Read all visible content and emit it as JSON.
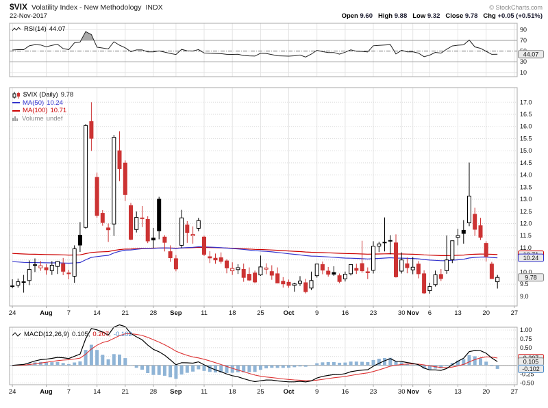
{
  "header": {
    "symbol": "$VIX",
    "title": "Volatility Index - New Methodology",
    "exchange": "INDX",
    "credit": "© StockCharts.com",
    "date": "22-Nov-2017",
    "quote": {
      "open_label": "Open",
      "open": "9.60",
      "high_label": "High",
      "high": "9.88",
      "low_label": "Low",
      "low": "9.32",
      "close_label": "Close",
      "close": "9.78",
      "chg_label": "Chg",
      "chg": "+0.05 (+0.51%)"
    }
  },
  "legends": {
    "rsi": {
      "label": "RSI(14)",
      "value": "44.07"
    },
    "main": {
      "symbol": "$VIX (Daily)",
      "value": "9.78",
      "ma50_label": "MA(50)",
      "ma50_value": "10.24",
      "ma100_label": "MA(100)",
      "ma100_value": "10.71",
      "volume_label": "Volume",
      "volume_value": "undef"
    },
    "macd": {
      "label": "MACD(12,26,9)",
      "macd_value": "0.105,",
      "signal_value": "0.207,",
      "hist_value": "-0.102"
    }
  },
  "chart_data": {
    "type": "candlestick",
    "title": "$VIX (Daily)",
    "x_slots": 90,
    "x_ticks": [
      {
        "i": 0,
        "label": "24"
      },
      {
        "i": 6,
        "label": "Aug",
        "m": true
      },
      {
        "i": 10,
        "label": "7"
      },
      {
        "i": 15,
        "label": "14"
      },
      {
        "i": 20,
        "label": "21"
      },
      {
        "i": 25,
        "label": "28"
      },
      {
        "i": 29,
        "label": "Sep",
        "m": true
      },
      {
        "i": 34,
        "label": "11"
      },
      {
        "i": 39,
        "label": "18"
      },
      {
        "i": 44,
        "label": "25"
      },
      {
        "i": 49,
        "label": "Oct",
        "m": true
      },
      {
        "i": 54,
        "label": "9"
      },
      {
        "i": 59,
        "label": "16"
      },
      {
        "i": 64,
        "label": "23"
      },
      {
        "i": 69,
        "label": "30"
      },
      {
        "i": 71,
        "label": "Nov",
        "m": true
      },
      {
        "i": 74,
        "label": "6"
      },
      {
        "i": 79,
        "label": "13"
      },
      {
        "i": 84,
        "label": "20"
      },
      {
        "i": 89,
        "label": "27"
      }
    ],
    "panels": {
      "rsi": {
        "type": "line",
        "label": "RSI(14)",
        "period": 14,
        "last": 44.07,
        "ylim": [
          2,
          102
        ],
        "ticks": [
          90,
          70,
          50,
          30,
          10
        ],
        "overbought": 70,
        "oversold": 30,
        "mid": 50
      },
      "price": {
        "type": "candlestick",
        "ylim": [
          8.6,
          17.6
        ],
        "tick_min": 9.0,
        "tick_max": 17.0,
        "tick_step": 0.5,
        "last_close": 9.78,
        "ma50": {
          "label": "MA(50)",
          "last": 10.24,
          "start": 10.45
        },
        "ma100": {
          "label": "MA(100)",
          "last": 10.71,
          "start": 10.78
        },
        "volume": "undef"
      },
      "macd": {
        "type": "macd",
        "label": "MACD(12,26,9)",
        "params": [
          12,
          26,
          9
        ],
        "last_macd": 0.105,
        "last_signal": 0.207,
        "last_hist": -0.102,
        "ylim": [
          -0.55,
          1.08
        ],
        "ticks": [
          1.0,
          0.75,
          0.5,
          0.25,
          0.0,
          -0.25,
          -0.5
        ]
      }
    },
    "ohlc": [
      [
        9.42,
        9.7,
        9.33,
        9.43
      ],
      [
        9.46,
        9.73,
        9.36,
        9.6
      ],
      [
        9.6,
        9.88,
        9.15,
        9.6
      ],
      [
        9.65,
        10.48,
        9.46,
        10.11
      ],
      [
        10.3,
        10.56,
        10.0,
        10.29
      ],
      [
        10.17,
        10.46,
        10.05,
        10.26
      ],
      [
        10.18,
        10.33,
        9.89,
        10.09
      ],
      [
        10.06,
        10.45,
        9.88,
        10.28
      ],
      [
        10.23,
        10.46,
        9.92,
        10.44
      ],
      [
        10.34,
        10.58,
        9.87,
        10.03
      ],
      [
        9.96,
        10.09,
        9.7,
        9.93
      ],
      [
        9.83,
        11.1,
        9.56,
        10.96
      ],
      [
        11.52,
        12.06,
        10.83,
        11.11
      ],
      [
        11.84,
        16.1,
        11.78,
        16.04
      ],
      [
        16.2,
        17.0,
        14.99,
        15.51
      ],
      [
        13.9,
        14.1,
        12.24,
        12.33
      ],
      [
        12.42,
        12.55,
        11.91,
        12.04
      ],
      [
        11.82,
        12.0,
        11.24,
        11.74
      ],
      [
        11.98,
        15.65,
        11.49,
        15.55
      ],
      [
        15.0,
        15.8,
        13.75,
        14.26
      ],
      [
        14.49,
        14.6,
        12.93,
        13.19
      ],
      [
        12.74,
        12.85,
        11.31,
        11.35
      ],
      [
        11.75,
        12.5,
        11.63,
        12.25
      ],
      [
        12.2,
        12.72,
        11.85,
        12.23
      ],
      [
        12.17,
        12.3,
        11.19,
        11.28
      ],
      [
        11.4,
        11.82,
        10.99,
        11.32
      ],
      [
        13.0,
        13.1,
        11.35,
        11.7
      ],
      [
        11.44,
        11.52,
        10.85,
        11.22
      ],
      [
        10.84,
        11.1,
        10.42,
        10.59
      ],
      [
        10.55,
        10.7,
        10.03,
        10.13
      ],
      [
        11.1,
        12.56,
        10.99,
        12.23
      ],
      [
        11.94,
        12.1,
        11.2,
        11.63
      ],
      [
        11.49,
        11.88,
        11.17,
        11.55
      ],
      [
        11.8,
        12.23,
        11.68,
        12.12
      ],
      [
        11.44,
        11.5,
        10.66,
        10.73
      ],
      [
        10.63,
        10.86,
        10.37,
        10.58
      ],
      [
        10.57,
        10.76,
        10.34,
        10.5
      ],
      [
        10.59,
        10.81,
        10.35,
        10.44
      ],
      [
        10.46,
        10.53,
        9.95,
        10.17
      ],
      [
        10.05,
        10.4,
        9.88,
        10.15
      ],
      [
        10.1,
        10.32,
        9.92,
        10.18
      ],
      [
        10.11,
        10.35,
        9.6,
        9.78
      ],
      [
        9.91,
        10.19,
        9.63,
        9.67
      ],
      [
        9.96,
        10.06,
        9.54,
        9.59
      ],
      [
        9.88,
        10.68,
        9.84,
        10.21
      ],
      [
        10.12,
        10.36,
        9.91,
        10.17
      ],
      [
        10.02,
        10.28,
        9.68,
        9.87
      ],
      [
        9.93,
        10.19,
        9.55,
        9.55
      ],
      [
        9.62,
        9.79,
        9.36,
        9.51
      ],
      [
        9.58,
        9.69,
        9.35,
        9.45
      ],
      [
        9.45,
        9.56,
        9.19,
        9.51
      ],
      [
        9.53,
        9.83,
        9.43,
        9.63
      ],
      [
        9.56,
        9.72,
        9.12,
        9.19
      ],
      [
        9.34,
        10.02,
        9.26,
        9.65
      ],
      [
        9.85,
        10.18,
        9.77,
        10.33
      ],
      [
        10.31,
        10.43,
        9.91,
        10.08
      ],
      [
        10.04,
        10.21,
        9.81,
        9.91
      ],
      [
        9.98,
        10.24,
        9.84,
        9.91
      ],
      [
        9.85,
        9.94,
        9.54,
        9.61
      ],
      [
        9.72,
        10.02,
        9.61,
        9.91
      ],
      [
        9.93,
        10.29,
        9.86,
        10.31
      ],
      [
        10.15,
        10.34,
        9.92,
        10.07
      ],
      [
        10.35,
        11.29,
        9.97,
        10.05
      ],
      [
        10.01,
        10.19,
        9.71,
        9.97
      ],
      [
        10.07,
        11.27,
        9.94,
        11.07
      ],
      [
        11.07,
        11.25,
        10.82,
        11.16
      ],
      [
        11.23,
        12.25,
        10.85,
        11.23
      ],
      [
        11.29,
        11.52,
        10.73,
        11.3
      ],
      [
        11.2,
        11.55,
        9.77,
        9.8
      ],
      [
        10.04,
        10.81,
        9.94,
        10.5
      ],
      [
        10.34,
        10.6,
        9.95,
        10.18
      ],
      [
        10.09,
        10.62,
        9.91,
        10.2
      ],
      [
        10.33,
        10.45,
        9.74,
        9.93
      ],
      [
        9.93,
        10.07,
        9.1,
        9.14
      ],
      [
        9.23,
        9.56,
        9.11,
        9.4
      ],
      [
        9.48,
        10.06,
        9.4,
        9.89
      ],
      [
        9.9,
        10.12,
        9.63,
        9.73
      ],
      [
        10.06,
        11.51,
        9.93,
        10.5
      ],
      [
        10.51,
        11.15,
        10.37,
        11.29
      ],
      [
        11.43,
        11.78,
        11.1,
        11.5
      ],
      [
        11.72,
        12.14,
        11.17,
        11.59
      ],
      [
        12.03,
        14.51,
        11.89,
        13.13
      ],
      [
        12.38,
        12.65,
        11.49,
        11.76
      ],
      [
        11.91,
        12.23,
        11.32,
        11.43
      ],
      [
        11.18,
        11.27,
        10.43,
        10.65
      ],
      [
        10.33,
        10.42,
        9.73,
        9.73
      ],
      [
        9.6,
        9.88,
        9.32,
        9.78
      ]
    ],
    "colors": {
      "grid": "#e4e4e4",
      "border": "#a8a8a8",
      "up": "#000000",
      "down": "#cc3333",
      "ma50": "#3333cc",
      "ma100": "#cc0000",
      "rsi": "#222222",
      "shade": "#aaaaaa",
      "hist": "#8fb4d6",
      "signal": "#dd3333",
      "macd": "#000000",
      "label_box_bg": "#ebebeb"
    }
  }
}
